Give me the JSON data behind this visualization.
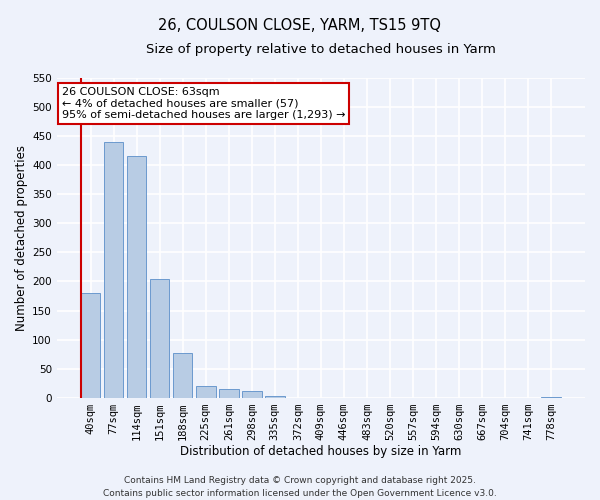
{
  "title": "26, COULSON CLOSE, YARM, TS15 9TQ",
  "subtitle": "Size of property relative to detached houses in Yarm",
  "xlabel": "Distribution of detached houses by size in Yarm",
  "ylabel": "Number of detached properties",
  "bin_labels": [
    "40sqm",
    "77sqm",
    "114sqm",
    "151sqm",
    "188sqm",
    "225sqm",
    "261sqm",
    "298sqm",
    "335sqm",
    "372sqm",
    "409sqm",
    "446sqm",
    "483sqm",
    "520sqm",
    "557sqm",
    "594sqm",
    "630sqm",
    "667sqm",
    "704sqm",
    "741sqm",
    "778sqm"
  ],
  "bar_heights": [
    180,
    440,
    415,
    205,
    78,
    20,
    15,
    12,
    3,
    0,
    0,
    0,
    0,
    0,
    0,
    0,
    0,
    0,
    0,
    0,
    2
  ],
  "bar_color": "#b8cce4",
  "bar_edgecolor": "#5b8fc9",
  "annotation_box_text": "26 COULSON CLOSE: 63sqm\n← 4% of detached houses are smaller (57)\n95% of semi-detached houses are larger (1,293) →",
  "annotation_box_color": "#ffffff",
  "annotation_box_edgecolor": "#cc0000",
  "vline_color": "#cc0000",
  "ylim": [
    0,
    550
  ],
  "yticks": [
    0,
    50,
    100,
    150,
    200,
    250,
    300,
    350,
    400,
    450,
    500,
    550
  ],
  "footer1": "Contains HM Land Registry data © Crown copyright and database right 2025.",
  "footer2": "Contains public sector information licensed under the Open Government Licence v3.0.",
  "background_color": "#eef2fb",
  "grid_color": "#ffffff",
  "title_fontsize": 10.5,
  "subtitle_fontsize": 9.5,
  "axis_label_fontsize": 8.5,
  "tick_fontsize": 7.5,
  "annotation_fontsize": 8,
  "footer_fontsize": 6.5
}
